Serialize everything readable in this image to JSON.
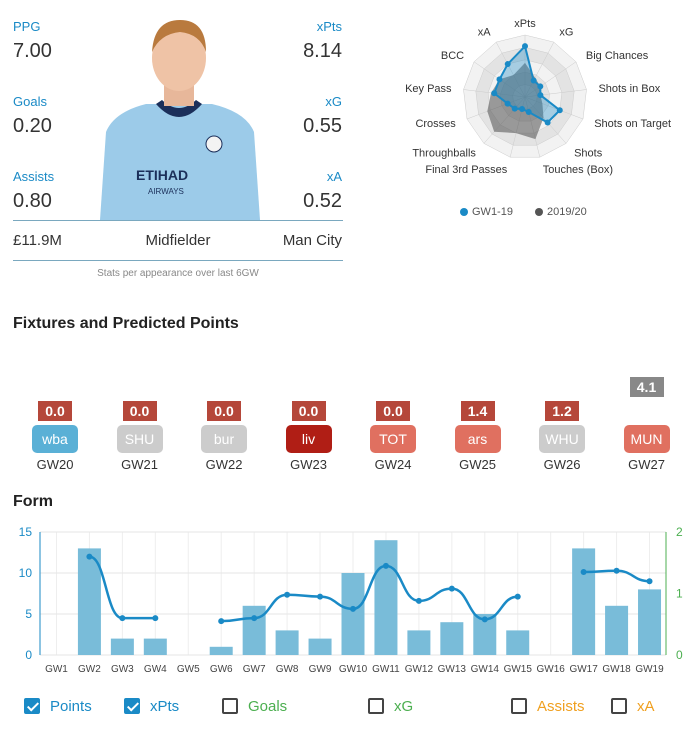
{
  "stats": {
    "ppg_label": "PPG",
    "ppg": "7.00",
    "xpts_label": "xPts",
    "xpts": "8.14",
    "goals_label": "Goals",
    "goals": "0.20",
    "xg_label": "xG",
    "xg": "0.55",
    "assists_label": "Assists",
    "assists": "0.80",
    "xa_label": "xA",
    "xa": "0.52",
    "price": "£11.9M",
    "position": "Midfielder",
    "team": "Man City",
    "note": "Stats per appearance over last 6GW"
  },
  "radar": {
    "axes": [
      "xPts",
      "xG",
      "Big Chances",
      "Shots in Box",
      "Shots on Target",
      "Shots",
      "Touches (Box)",
      "Final 3rd Passes",
      "Throughballs",
      "Crosses",
      "Key Pass",
      "BCC",
      "xA"
    ],
    "series": [
      {
        "name": "GW1-19",
        "color": "#1a8ac6",
        "values": [
          0.82,
          0.3,
          0.3,
          0.25,
          0.6,
          0.55,
          0.25,
          0.2,
          0.25,
          0.3,
          0.5,
          0.5,
          0.6
        ]
      },
      {
        "name": "2019/20",
        "color": "#555555",
        "values": [
          0.55,
          0.35,
          0.3,
          0.25,
          0.3,
          0.45,
          0.7,
          0.6,
          0.75,
          0.65,
          0.55,
          0.5,
          0.4
        ]
      }
    ],
    "legend": [
      "GW1-19",
      "2019/20"
    ]
  },
  "fixtures": {
    "title": "Fixtures and Predicted Points",
    "items": [
      {
        "gw": "GW20",
        "team": "wba",
        "pts": "0.0",
        "team_color": "#5ab0d6",
        "pts_color": "#b5473a"
      },
      {
        "gw": "GW21",
        "team": "SHU",
        "pts": "0.0",
        "team_color": "#cccccc",
        "pts_color": "#b5473a"
      },
      {
        "gw": "GW22",
        "team": "bur",
        "pts": "0.0",
        "team_color": "#cccccc",
        "pts_color": "#b5473a"
      },
      {
        "gw": "GW23",
        "team": "liv",
        "pts": "0.0",
        "team_color": "#b01e15",
        "pts_color": "#b5473a"
      },
      {
        "gw": "GW24",
        "team": "TOT",
        "pts": "0.0",
        "team_color": "#e07060",
        "pts_color": "#b5473a"
      },
      {
        "gw": "GW25",
        "team": "ars",
        "pts": "1.4",
        "team_color": "#e07060",
        "pts_color": "#b5473a"
      },
      {
        "gw": "GW26",
        "team": "WHU",
        "pts": "1.2",
        "team_color": "#cccccc",
        "pts_color": "#b5473a"
      },
      {
        "gw": "GW27",
        "team": "MUN",
        "pts": "4.1",
        "team_color": "#e07060",
        "pts_color": "#888888"
      }
    ]
  },
  "form": {
    "title": "Form",
    "toggles": [
      {
        "label": "Points",
        "checked": true,
        "color": "#1a8ac6"
      },
      {
        "label": "xPts",
        "checked": true,
        "color": "#1a8ac6"
      },
      {
        "label": "Goals",
        "checked": false,
        "color": "#4caf50"
      },
      {
        "label": "xG",
        "checked": false,
        "color": "#4caf50"
      },
      {
        "label": "Assists",
        "checked": false,
        "color": "#f0a020"
      },
      {
        "label": "xA",
        "checked": false,
        "color": "#f0a020"
      }
    ]
  },
  "chart_data": {
    "type": "bar",
    "categories": [
      "GW1",
      "GW2",
      "GW3",
      "GW4",
      "GW5",
      "GW6",
      "GW7",
      "GW8",
      "GW9",
      "GW10",
      "GW11",
      "GW12",
      "GW13",
      "GW14",
      "GW15",
      "GW16",
      "GW17",
      "GW18",
      "GW19"
    ],
    "series": [
      {
        "name": "Points",
        "values": [
          null,
          13,
          2,
          2,
          null,
          1,
          6,
          3,
          2,
          10,
          14,
          3,
          4,
          5,
          3,
          null,
          13,
          6,
          8
        ]
      },
      {
        "name": "xPts",
        "values": [
          null,
          1.6,
          0.6,
          0.6,
          null,
          0.55,
          0.6,
          0.98,
          0.95,
          0.75,
          1.45,
          0.88,
          1.08,
          0.58,
          0.95,
          null,
          1.35,
          1.37,
          1.2
        ]
      }
    ],
    "ylim": [
      0,
      15
    ],
    "y2lim": [
      0,
      2
    ],
    "yticks": [
      0,
      5,
      10,
      15
    ],
    "y2ticks": [
      0,
      1,
      2
    ],
    "grid": true
  }
}
